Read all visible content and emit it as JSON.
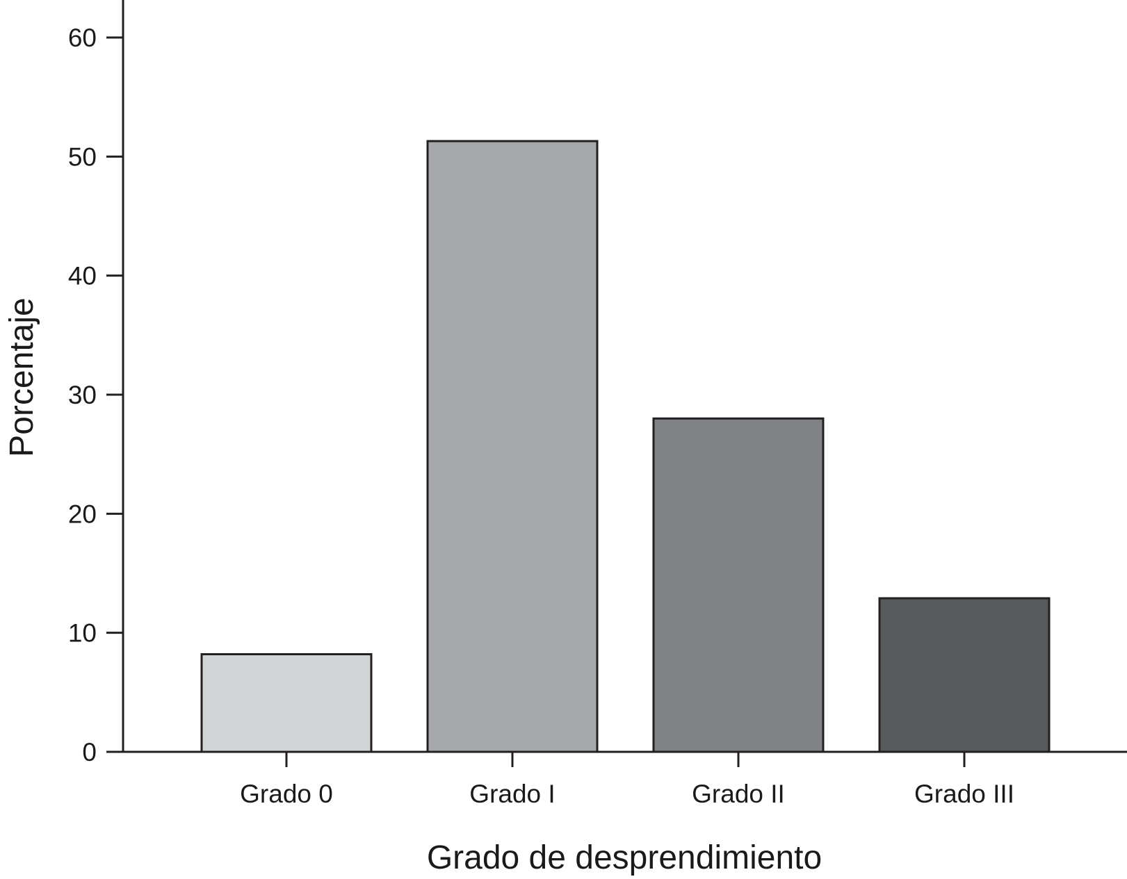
{
  "chart_data": {
    "type": "bar",
    "title": "",
    "xlabel": "Grado de desprendimiento",
    "ylabel": "Porcentaje",
    "categories": [
      "Grado 0",
      "Grado I",
      "Grado II",
      "Grado III"
    ],
    "values": [
      8.2,
      51.3,
      28.0,
      12.9
    ],
    "bar_colors": [
      "#d3d4d6",
      "#a7a8ab",
      "#818285",
      "#58595b"
    ],
    "yticks": [
      "0",
      "10",
      "20",
      "30",
      "40",
      "50",
      "60"
    ],
    "ylim": [
      0,
      63
    ],
    "grid": false,
    "legend": "none"
  }
}
